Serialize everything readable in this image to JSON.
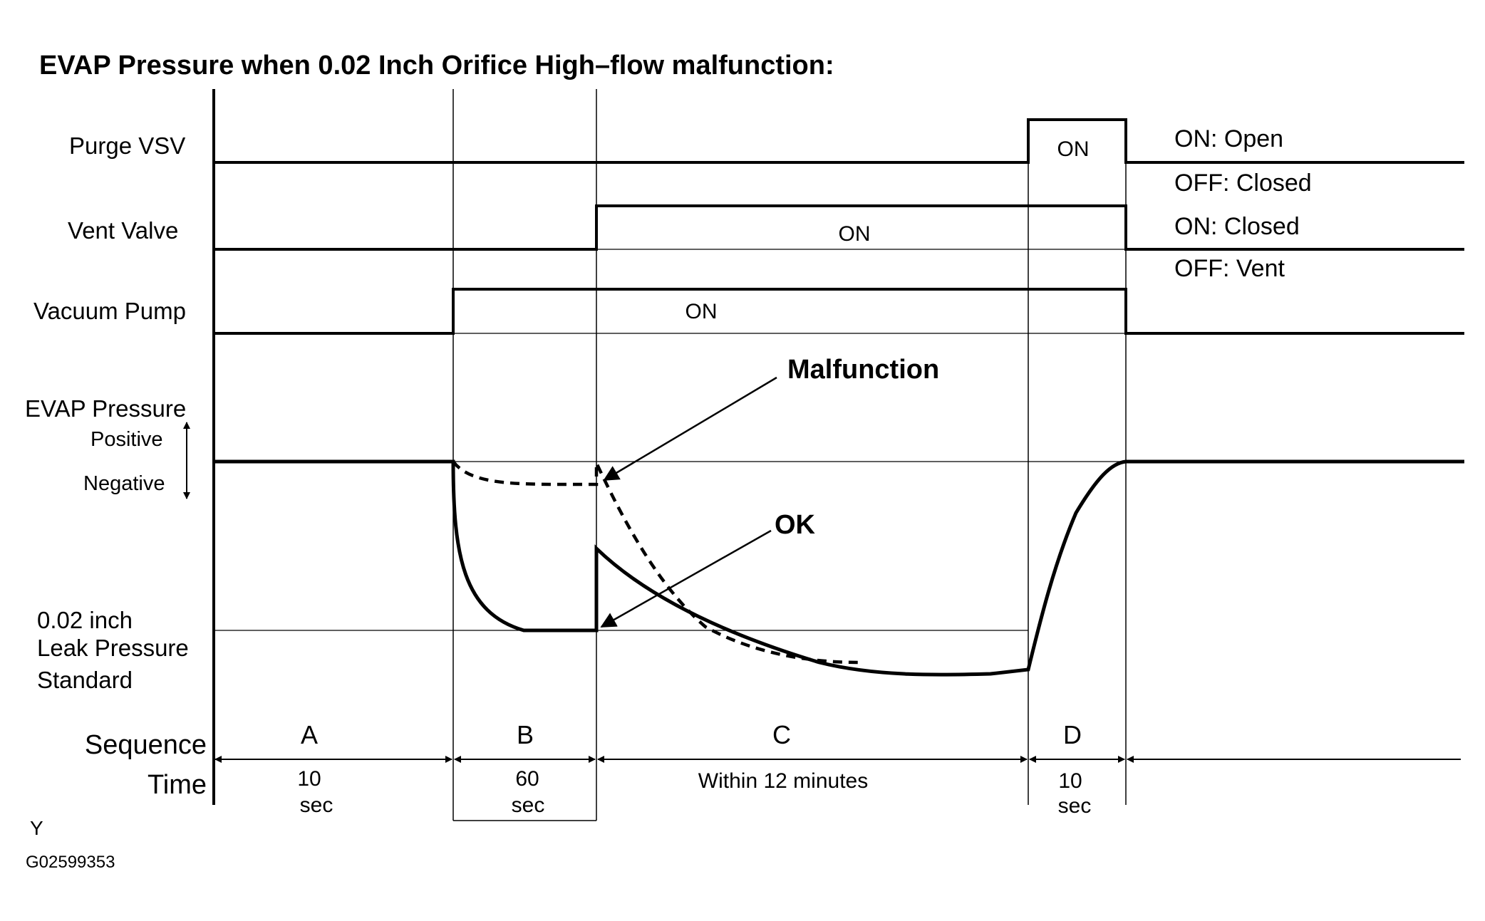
{
  "title": "EVAP Pressure when 0.02 Inch Orifice High–flow malfunction:",
  "signals": {
    "purge_vsv": "Purge VSV",
    "vent_valve": "Vent Valve",
    "vacuum_pump": "Vacuum Pump",
    "evap_pressure": "EVAP Pressure",
    "positive": "Positive",
    "negative": "Negative",
    "leak_std_line1": "0.02 inch",
    "leak_std_line2": "Leak Pressure",
    "leak_std_line3": "Standard"
  },
  "on_labels": {
    "purge": "ON",
    "vent": "ON",
    "pump": "ON"
  },
  "state_legend": {
    "purge_on": "ON: Open",
    "purge_off": "OFF: Closed",
    "vent_on": "ON: Closed",
    "vent_off": "OFF: Vent"
  },
  "callouts": {
    "malfunction": "Malfunction",
    "ok": "OK"
  },
  "sequence_label": "Sequence",
  "time_label": "Time",
  "sequences": [
    {
      "id": "A",
      "time_line1": "10",
      "time_line2": "sec"
    },
    {
      "id": "B",
      "time_line1": "60",
      "time_line2": "sec"
    },
    {
      "id": "C",
      "time_line1": "Within 12 minutes",
      "time_line2": ""
    },
    {
      "id": "D",
      "time_line1": "10",
      "time_line2": "sec"
    }
  ],
  "footer": {
    "mark": "Y",
    "code": "G02599353"
  }
}
